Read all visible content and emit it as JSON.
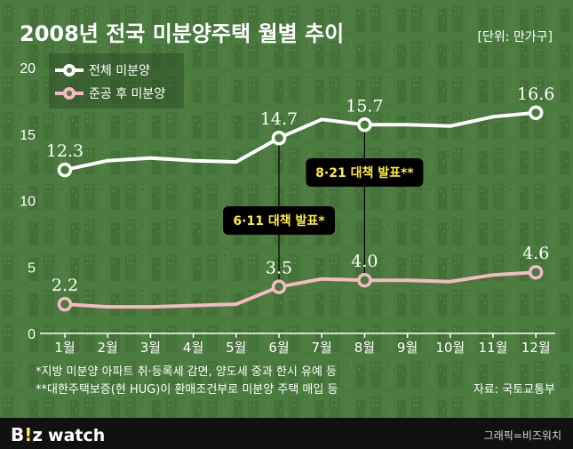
{
  "chart_data": {
    "type": "line",
    "title": "2008년 전국 미분양주택 월별 추이",
    "unit": "[단위: 만가구]",
    "categories": [
      "1월",
      "2월",
      "3월",
      "4월",
      "5월",
      "6월",
      "7월",
      "8월",
      "9월",
      "10월",
      "11월",
      "12월"
    ],
    "yticks": [
      "0",
      "5",
      "10",
      "15",
      "20"
    ],
    "ylim": [
      0,
      20
    ],
    "grid": false,
    "legend_position": "top-left",
    "series": [
      {
        "name": "전체 미분양",
        "color": "#ffffff",
        "values": [
          12.3,
          13.0,
          13.2,
          13.0,
          12.9,
          14.7,
          16.1,
          15.7,
          15.7,
          15.6,
          16.3,
          16.6
        ],
        "labels": [
          {
            "index": 0,
            "text": "12.3"
          },
          {
            "index": 5,
            "text": "14.7"
          },
          {
            "index": 7,
            "text": "15.7"
          },
          {
            "index": 11,
            "text": "16.6"
          }
        ]
      },
      {
        "name": "준공 후 미분양",
        "color": "#f5b8c4",
        "values": [
          2.2,
          2.0,
          2.0,
          2.1,
          2.2,
          3.5,
          4.1,
          4.0,
          4.0,
          3.9,
          4.4,
          4.6
        ],
        "labels": [
          {
            "index": 0,
            "text": "2.2"
          },
          {
            "index": 5,
            "text": "3.5"
          },
          {
            "index": 7,
            "text": "4.0"
          },
          {
            "index": 11,
            "text": "4.6"
          }
        ]
      }
    ],
    "annotations": [
      {
        "index": 5,
        "text": "6·11 대책 발표*"
      },
      {
        "index": 7,
        "text": "8·21 대책 발표**"
      }
    ]
  },
  "footnotes": [
    "*지방 미분양 아파트 취·등록세 감면, 양도세 중과 한시 유예 등",
    "**대한주택보증(현 HUG)이 환매조건부로 미분양 주택 매입 등"
  ],
  "source": "자료: 국토교통부",
  "brand": {
    "b": "B",
    "excl": "!",
    "z": "z",
    "watch": "watch"
  },
  "credit": "그래픽=비즈워치",
  "colors": {
    "bg": "#4a7a3e",
    "footer": "#111111",
    "accent": "#ffeb3b",
    "pink": "#f5b8c4"
  }
}
